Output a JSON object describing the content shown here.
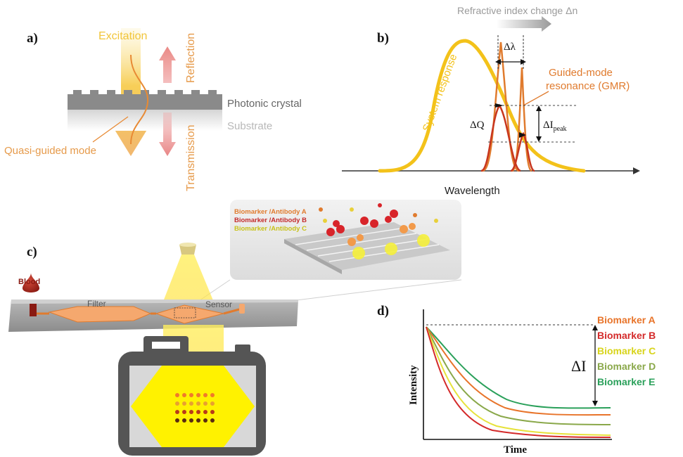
{
  "panel_a": {
    "letter": "a)",
    "excitation": "Excitation",
    "reflection": "Reflection",
    "transmission": "Transmission",
    "photonic_crystal": "Photonic crystal",
    "substrate": "Substrate",
    "quasi_guided_mode": "Quasi-guided mode"
  },
  "panel_b": {
    "letter": "b)",
    "refractive_change": "Refractive index change Δn",
    "system_response": "System response",
    "gmr_line1": "Guided-mode",
    "gmr_line2": "resonance (GMR)",
    "delta_lambda": "Δλ",
    "delta_q": "ΔQ",
    "delta_i": "ΔI",
    "delta_i_sub": "peak",
    "xlabel": "Wavelength"
  },
  "panel_c": {
    "letter": "c)",
    "blood": "Blood",
    "filter": "Filter",
    "sensor": "Sensor",
    "inset_labels": [
      "Biomarker /Antibody A",
      "Biomarker /Antibody B",
      "Biomarker /Antibody C"
    ]
  },
  "panel_d": {
    "letter": "d)",
    "ylabel": "Intensity",
    "xlabel": "Time",
    "delta_i": "ΔI",
    "legend": [
      {
        "name": "Biomarker A",
        "color": "#e8742a"
      },
      {
        "name": "Biomarker B",
        "color": "#d42a2a"
      },
      {
        "name": "Biomarker C",
        "color": "#d8d41a"
      },
      {
        "name": "Biomarker D",
        "color": "#8aa84a"
      },
      {
        "name": "Biomarker E",
        "color": "#2aa05a"
      }
    ]
  },
  "colors": {
    "excitation": "#f2c53d",
    "reflection": "#e79a9a",
    "gmr": "#e07b2e",
    "system_response": "#f3c21a",
    "sensor_orange": "#f5a86e",
    "camera": "#555555"
  }
}
